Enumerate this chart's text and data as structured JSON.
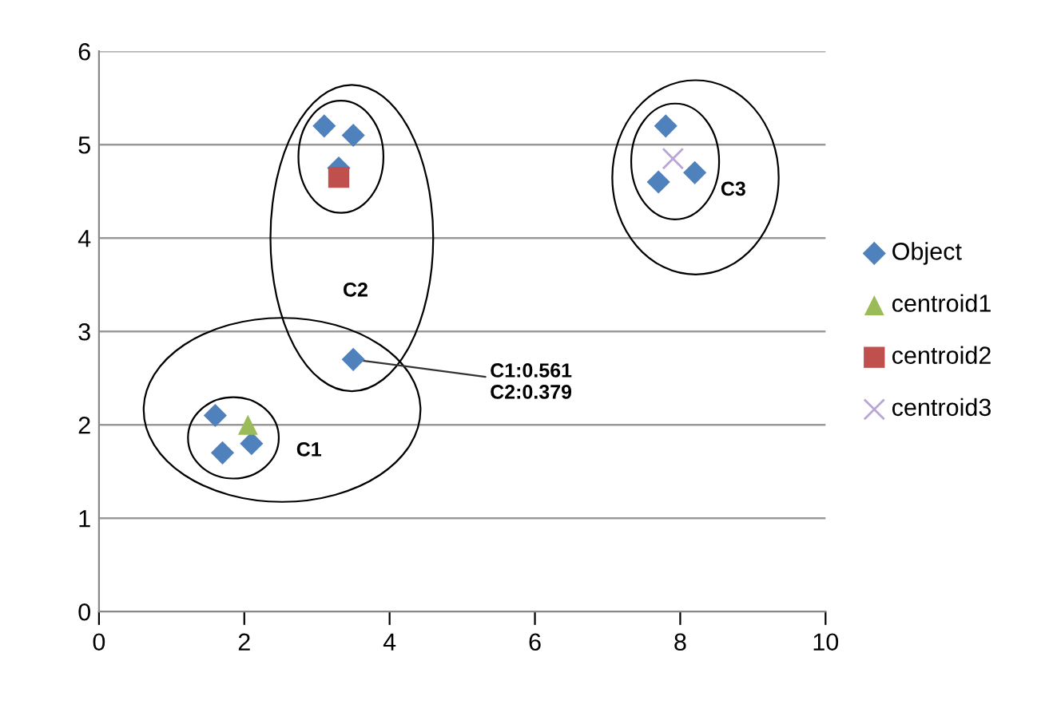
{
  "chart_data": {
    "type": "scatter",
    "xlim": [
      0,
      10
    ],
    "ylim": [
      0,
      6
    ],
    "xticks": [
      0,
      2,
      4,
      6,
      8,
      10
    ],
    "yticks": [
      0,
      1,
      2,
      3,
      4,
      5,
      6
    ],
    "grid": "y",
    "legend": "right",
    "series": [
      {
        "name": "Object",
        "color": "#4f81bd",
        "marker": "diamond",
        "x": [
          1.6,
          1.7,
          2.1,
          3.1,
          3.5,
          3.3,
          3.5,
          7.8,
          7.7,
          8.2
        ],
        "values": [
          2.1,
          1.7,
          1.8,
          5.2,
          5.1,
          4.75,
          2.7,
          5.2,
          4.6,
          4.7
        ]
      },
      {
        "name": "centroid1",
        "color": "#9bbb59",
        "marker": "triangle",
        "x": [
          2.05
        ],
        "values": [
          2.0
        ]
      },
      {
        "name": "centroid2",
        "color": "#c0504d",
        "marker": "square",
        "x": [
          3.3
        ],
        "values": [
          4.65
        ]
      },
      {
        "name": "centroid3",
        "color": "#b9a5d6",
        "marker": "cross",
        "x": [
          7.9
        ],
        "values": [
          4.85
        ]
      }
    ],
    "annotations": [
      {
        "text": "C1:0.561\nC2:0.379",
        "x": 3.5,
        "y": 2.7
      },
      "C1",
      "C2",
      "C3"
    ]
  }
}
